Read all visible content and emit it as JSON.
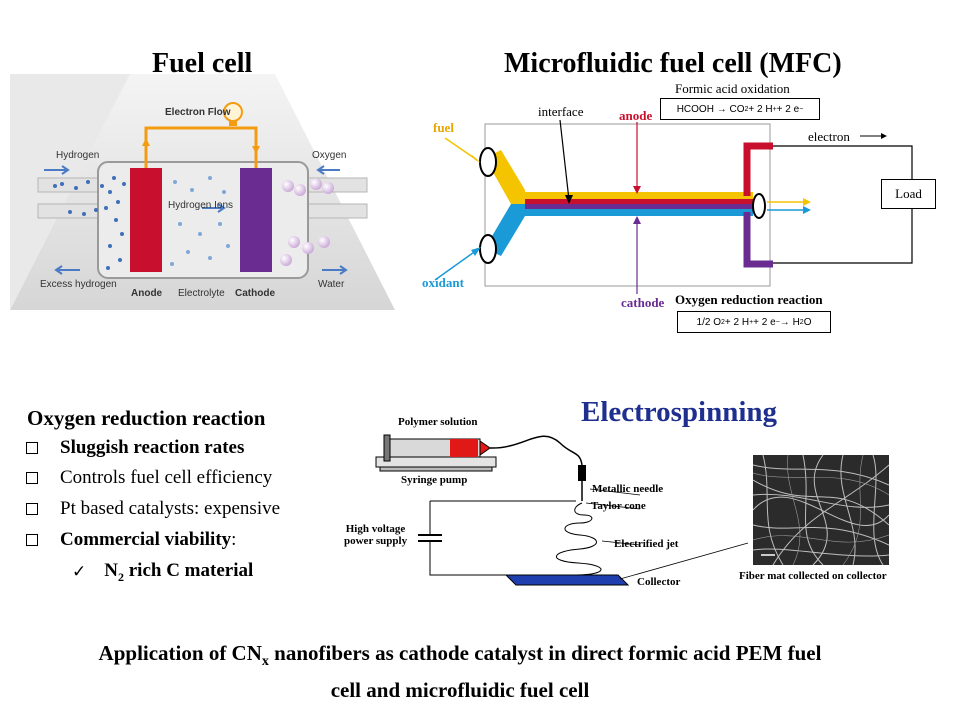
{
  "fuel_cell": {
    "title": "Fuel cell",
    "electron_flow": "Electron Flow",
    "hydrogen": "Hydrogen",
    "oxygen": "Oxygen",
    "hydrogen_ions": "Hydrogen Ions",
    "excess_hydrogen": "Excess hydrogen",
    "anode": "Anode",
    "electrolyte": "Electrolyte",
    "cathode": "Cathode",
    "water": "Water",
    "colors": {
      "anode": "#c8102e",
      "cathode": "#6a2c91",
      "wire": "#f39c12"
    }
  },
  "mfc": {
    "title": "Microfluidic fuel cell (MFC)",
    "formic_label": "Formic acid oxidation",
    "formic_eq_main": "HCOOH → CO",
    "formic_eq_sub": "2",
    "formic_eq_rest": " + 2 H",
    "formic_eq_sup1": "+",
    "formic_eq_rest2": " + 2 e",
    "formic_eq_sup2": "−",
    "interface": "interface",
    "anode": "anode",
    "fuel": "fuel",
    "oxidant": "oxidant",
    "electron": "electron",
    "load": "Load",
    "cathode": "cathode",
    "orr_label": "Oxygen reduction reaction",
    "orr_eq_a": "1/2 O",
    "orr_eq_a_sub": "2",
    "orr_eq_b": " + 2 H",
    "orr_eq_b_sup": "+",
    "orr_eq_c": " + 2 e",
    "orr_eq_c_sup": "−",
    "orr_eq_d": " → H",
    "orr_eq_d_sub": "2",
    "orr_eq_e": "O",
    "colors": {
      "fuel": "#f5c400",
      "oxidant": "#1a9ad6",
      "anode": "#c8102e",
      "cathode": "#6a2c91"
    }
  },
  "orr": {
    "heading": "Oxygen reduction reaction",
    "items": [
      "Sluggish reaction rates",
      "Controls fuel cell efficiency",
      "Pt based catalysts: expensive",
      "Commercial viability",
      ":"
    ],
    "sub_a": "N",
    "sub_a_sub": "2",
    "sub_b": " rich C material"
  },
  "electrospinning": {
    "title": "Electrospinning",
    "polymer_solution": "Polymer solution",
    "syringe_pump": "Syringe pump",
    "metallic_needle": "Metallic needle",
    "taylor_cone": "Taylor cone",
    "hv_line1": "High voltage",
    "hv_line2": "power supply",
    "electrified_jet": "Electrified jet",
    "collector": "Collector",
    "fiber_mat": "Fiber mat collected on collector",
    "colors": {
      "title": "#1f2f8f",
      "collector": "#1f3fae"
    }
  },
  "caption": {
    "line1_a": "Application of CN",
    "line1_sub": "x",
    "line1_b": " nanofibers as cathode catalyst in direct formic acid PEM fuel",
    "line2": "cell and microfluidic fuel cell"
  }
}
